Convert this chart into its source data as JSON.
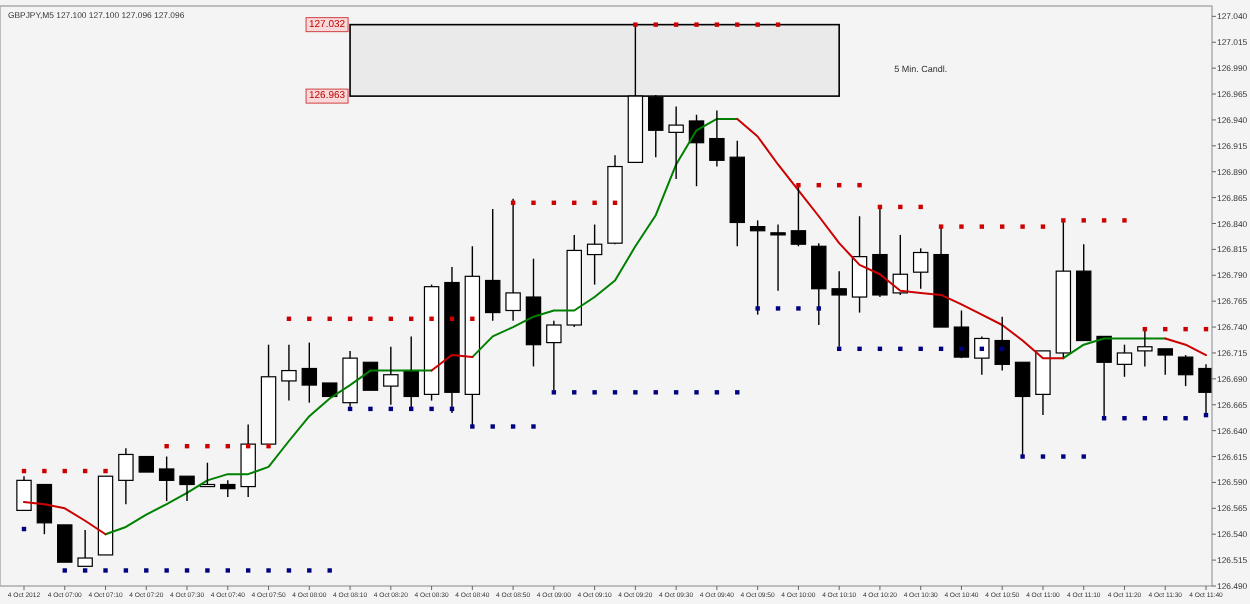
{
  "chart_data": {
    "type": "candlestick",
    "title": "GBPJPY,M5 127.100 127.100 127.096 127.096",
    "categories": [
      "4 Oct 2012",
      null,
      "4 Oct 07:00",
      null,
      "4 Oct 07:10",
      null,
      "4 Oct 07:20",
      null,
      "4 Oct 07:30",
      null,
      "4 Oct 07:40",
      null,
      "4 Oct 07:50",
      null,
      "4 Oct 08:00",
      null,
      "4 Oct 08:10",
      null,
      "4 Oct 08:20",
      null,
      "4 Oct 08:30",
      null,
      "4 Oct 08:40",
      null,
      "4 Oct 08:50",
      null,
      "4 Oct 09:00",
      null,
      "4 Oct 09:10",
      null,
      "4 Oct 09:20",
      null,
      "4 Oct 09:30",
      null,
      "4 Oct 09:40",
      null,
      "4 Oct 09:50",
      null,
      "4 Oct 10:00",
      null,
      "4 Oct 10:10",
      null,
      "4 Oct 10:20",
      null,
      "4 Oct 10:30",
      null,
      "4 Oct 10:40",
      null,
      "4 Oct 10:50",
      null,
      "4 Oct 11:00",
      null,
      "4 Oct 11:10",
      null,
      "4 Oct 11:20",
      null,
      "4 Oct 11:30",
      null,
      "4 Oct 11:40"
    ],
    "ylim": [
      126.49,
      127.05
    ],
    "yticks": [
      {
        "value": 126.49,
        "label": "126.490"
      },
      126.515,
      {
        "value": 126.54,
        "label": "126.540"
      },
      126.565,
      {
        "value": 126.59,
        "label": "126.590"
      },
      126.615,
      {
        "value": 126.64,
        "label": "126.640"
      },
      126.665,
      {
        "value": 126.69,
        "label": "126.690"
      },
      126.715,
      {
        "value": 126.74,
        "label": "126.740"
      },
      126.765,
      {
        "value": 126.79,
        "label": "126.790"
      },
      126.815,
      {
        "value": 126.84,
        "label": "126.840"
      },
      126.865,
      {
        "value": 126.89,
        "label": "126.890"
      },
      126.915,
      {
        "value": 126.94,
        "label": "126.940"
      },
      126.965,
      {
        "value": 126.99,
        "label": "126.990"
      },
      127.015,
      {
        "value": 127.04,
        "label": "127.040"
      }
    ],
    "grid": false,
    "bands": [
      {
        "axis": "y",
        "from": 126.963,
        "to": 127.032,
        "color": "#000000"
      }
    ],
    "annotations": [
      "5 Min. Candl.",
      "127.032",
      "126.963"
    ],
    "series": [
      {
        "type": "line",
        "color": "#008000",
        "values": [
          null,
          null,
          null,
          null,
          126.54,
          126.547,
          126.559,
          126.569,
          126.58,
          126.592,
          126.598,
          126.598,
          126.605,
          126.63,
          126.654,
          126.671,
          126.684,
          126.698,
          126.698,
          126.698,
          126.698,
          null,
          126.711,
          126.731,
          126.74,
          126.75,
          126.756,
          126.756,
          126.769,
          126.785,
          126.818,
          126.848,
          126.897,
          126.93,
          126.941,
          126.941,
          null,
          null,
          null,
          null,
          null,
          null,
          null,
          null,
          null,
          null,
          null,
          null,
          null,
          null,
          null,
          126.71,
          126.723,
          126.729,
          126.729,
          126.729,
          126.729,
          null,
          null
        ]
      },
      {
        "type": "line",
        "color": "#cc0000",
        "values": [
          126.571,
          126.569,
          126.565,
          126.553,
          126.54,
          null,
          null,
          null,
          null,
          null,
          null,
          null,
          null,
          null,
          null,
          null,
          null,
          null,
          null,
          null,
          126.698,
          126.713,
          126.711,
          null,
          null,
          null,
          null,
          null,
          null,
          null,
          null,
          null,
          null,
          null,
          null,
          126.941,
          126.924,
          126.897,
          126.872,
          126.847,
          126.821,
          126.8,
          126.791,
          126.775,
          126.773,
          126.771,
          126.762,
          126.752,
          126.742,
          126.727,
          126.71,
          126.71,
          null,
          null,
          null,
          null,
          126.729,
          126.723,
          126.713
        ]
      },
      {
        "type": "scatter",
        "color": "#cc0000",
        "marker": "square",
        "values": [
          126.601,
          126.601,
          126.601,
          126.601,
          126.601,
          null,
          null,
          126.625,
          126.625,
          126.625,
          126.625,
          126.625,
          126.625,
          126.748,
          126.748,
          126.748,
          126.748,
          126.748,
          126.748,
          126.748,
          126.748,
          126.748,
          126.748,
          null,
          126.86,
          126.86,
          126.86,
          126.86,
          126.86,
          126.86,
          127.032,
          127.032,
          127.032,
          127.032,
          127.032,
          127.032,
          127.032,
          127.032,
          126.877,
          126.877,
          126.877,
          126.877,
          126.856,
          126.856,
          126.856,
          126.837,
          126.837,
          126.837,
          126.837,
          126.837,
          126.837,
          126.843,
          126.843,
          126.843,
          126.843,
          126.738,
          126.738,
          126.738,
          126.738
        ]
      },
      {
        "type": "scatter",
        "color": "#000080",
        "marker": "square",
        "values": [
          126.545,
          null,
          126.505,
          126.505,
          126.505,
          126.505,
          126.505,
          126.505,
          126.505,
          126.505,
          126.505,
          126.505,
          126.505,
          126.505,
          126.505,
          126.505,
          126.661,
          126.661,
          126.661,
          126.661,
          126.661,
          126.661,
          126.644,
          126.644,
          126.644,
          126.644,
          126.677,
          126.677,
          126.677,
          126.677,
          126.677,
          126.677,
          126.677,
          126.677,
          126.677,
          126.677,
          126.758,
          126.758,
          126.758,
          126.758,
          126.719,
          126.719,
          126.719,
          126.719,
          126.719,
          126.719,
          126.719,
          126.719,
          126.719,
          126.615,
          126.615,
          126.615,
          126.615,
          126.652,
          126.652,
          126.652,
          126.652,
          126.652,
          126.655
        ]
      },
      {
        "type": "candlestick",
        "color": "#000000",
        "ohlc": [
          [
            126.563,
            126.596,
            126.563,
            126.592
          ],
          [
            126.588,
            126.588,
            126.54,
            126.551
          ],
          [
            126.549,
            126.549,
            126.513,
            126.513
          ],
          [
            126.509,
            126.544,
            126.509,
            126.517
          ],
          [
            126.52,
            126.596,
            126.52,
            126.596
          ],
          [
            126.592,
            126.623,
            126.569,
            126.617
          ],
          [
            126.615,
            126.615,
            126.6,
            126.6
          ],
          [
            126.603,
            126.615,
            126.572,
            126.592
          ],
          [
            126.596,
            126.596,
            126.572,
            126.588
          ],
          [
            126.586,
            126.609,
            126.586,
            126.588
          ],
          [
            126.588,
            126.592,
            126.576,
            126.584
          ],
          [
            126.586,
            126.646,
            126.576,
            126.627
          ],
          [
            126.627,
            126.723,
            126.625,
            126.692
          ],
          [
            126.688,
            126.723,
            126.669,
            126.698
          ],
          [
            126.7,
            126.725,
            126.667,
            126.684
          ],
          [
            126.686,
            126.686,
            126.673,
            126.673
          ],
          [
            126.667,
            126.717,
            126.663,
            126.71
          ],
          [
            126.706,
            126.706,
            126.679,
            126.679
          ],
          [
            126.683,
            126.721,
            126.665,
            126.694
          ],
          [
            126.698,
            126.731,
            126.659,
            126.673
          ],
          [
            126.675,
            126.781,
            126.669,
            126.779
          ],
          [
            126.783,
            126.798,
            126.657,
            126.677
          ],
          [
            126.675,
            126.818,
            126.644,
            126.789
          ],
          [
            126.785,
            126.854,
            126.746,
            126.754
          ],
          [
            126.756,
            126.864,
            126.746,
            126.773
          ],
          [
            126.769,
            126.806,
            126.702,
            126.723
          ],
          [
            126.725,
            126.746,
            126.679,
            126.742
          ],
          [
            126.742,
            126.829,
            126.74,
            126.814
          ],
          [
            126.81,
            126.839,
            126.781,
            126.82
          ],
          [
            126.821,
            126.906,
            126.82,
            126.895
          ],
          [
            126.899,
            127.032,
            126.899,
            126.963
          ],
          [
            126.962,
            126.964,
            126.904,
            126.93
          ],
          [
            126.928,
            126.953,
            126.883,
            126.935
          ],
          [
            126.939,
            126.945,
            126.876,
            126.918
          ],
          [
            126.922,
            126.949,
            126.895,
            126.901
          ],
          [
            126.904,
            126.92,
            126.818,
            126.841
          ],
          [
            126.837,
            126.843,
            126.752,
            126.833
          ],
          [
            126.831,
            126.839,
            126.775,
            126.829
          ],
          [
            126.833,
            126.879,
            126.818,
            126.82
          ],
          [
            126.818,
            126.821,
            126.742,
            126.777
          ],
          [
            126.777,
            126.794,
            126.721,
            126.771
          ],
          [
            126.769,
            126.847,
            126.754,
            126.808
          ],
          [
            126.81,
            126.854,
            126.769,
            126.771
          ],
          [
            126.773,
            126.829,
            126.771,
            126.791
          ],
          [
            126.793,
            126.816,
            126.777,
            126.812
          ],
          [
            126.81,
            126.837,
            126.74,
            126.74
          ],
          [
            126.74,
            126.756,
            126.71,
            126.711
          ],
          [
            126.71,
            126.731,
            126.694,
            126.729
          ],
          [
            126.727,
            126.75,
            126.698,
            126.704
          ],
          [
            126.706,
            126.706,
            126.615,
            126.673
          ],
          [
            126.675,
            126.717,
            126.655,
            126.717
          ],
          [
            126.715,
            126.843,
            126.711,
            126.794
          ],
          [
            126.794,
            126.82,
            126.727,
            126.727
          ],
          [
            126.731,
            126.731,
            126.65,
            126.706
          ],
          [
            126.704,
            126.723,
            126.692,
            126.715
          ],
          [
            126.717,
            126.738,
            126.702,
            126.721
          ],
          [
            126.719,
            126.719,
            126.694,
            126.713
          ],
          [
            126.711,
            126.713,
            126.683,
            126.694
          ],
          [
            126.7,
            126.704,
            126.655,
            126.677
          ]
        ]
      }
    ]
  }
}
